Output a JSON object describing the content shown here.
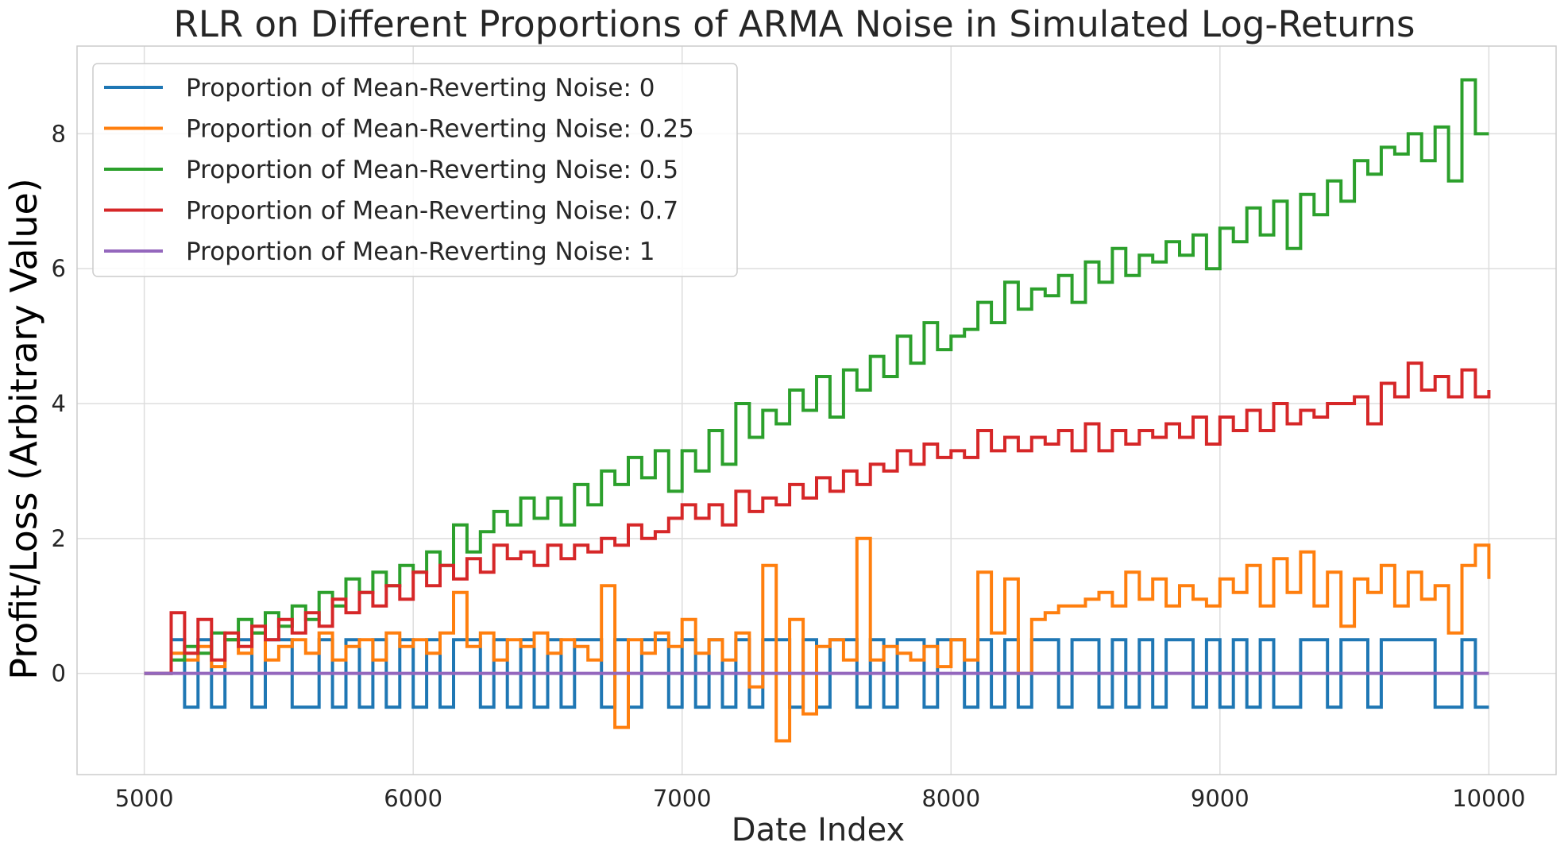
{
  "chart_data": {
    "type": "line",
    "title": "RLR on Different Proportions of ARMA Noise in Simulated Log-Returns",
    "xlabel": "Date Index",
    "ylabel": "Profit/Loss (Arbitrary Value)",
    "xlim": [
      4750,
      10250
    ],
    "ylim": [
      -1.5,
      9.3
    ],
    "xticks": [
      5000,
      6000,
      7000,
      8000,
      9000,
      10000
    ],
    "yticks": [
      0,
      2,
      4,
      6,
      8
    ],
    "grid": true,
    "legend_position": "top-left",
    "series": [
      {
        "name": "Proportion of Mean-Reverting Noise: 0",
        "color": "#1f77b4",
        "x": [
          5000,
          5050,
          5100,
          5150,
          5200,
          5250,
          5300,
          5350,
          5400,
          5450,
          5500,
          5550,
          5600,
          5650,
          5700,
          5750,
          5800,
          5850,
          5900,
          5950,
          6000,
          6050,
          6100,
          6150,
          6200,
          6250,
          6300,
          6350,
          6400,
          6450,
          6500,
          6550,
          6600,
          6650,
          6700,
          6750,
          6800,
          6850,
          6900,
          6950,
          7000,
          7050,
          7100,
          7150,
          7200,
          7250,
          7300,
          7350,
          7400,
          7450,
          7500,
          7550,
          7600,
          7650,
          7700,
          7750,
          7800,
          7850,
          7900,
          7950,
          8000,
          8050,
          8100,
          8150,
          8200,
          8250,
          8300,
          8350,
          8400,
          8450,
          8500,
          8550,
          8600,
          8650,
          8700,
          8750,
          8800,
          8850,
          8900,
          8950,
          9000,
          9050,
          9100,
          9150,
          9200,
          9250,
          9300,
          9350,
          9400,
          9450,
          9500,
          9550,
          9600,
          9650,
          9700,
          9750,
          9800,
          9850,
          9900,
          9950,
          10000
        ],
        "y": [
          0,
          0,
          0.5,
          -0.5,
          0.5,
          -0.5,
          0.5,
          0.5,
          -0.5,
          0.5,
          0.5,
          -0.5,
          -0.5,
          0.5,
          -0.5,
          0.5,
          -0.5,
          0.5,
          -0.5,
          0.5,
          -0.5,
          0.5,
          -0.5,
          0.5,
          0.5,
          -0.5,
          0.5,
          -0.5,
          0.5,
          -0.5,
          0.5,
          -0.5,
          0.5,
          0.5,
          -0.5,
          0.5,
          -0.5,
          0.5,
          0.5,
          -0.5,
          0.5,
          -0.5,
          0.5,
          -0.5,
          0.5,
          -0.5,
          0.5,
          0.5,
          -0.5,
          0.5,
          -0.5,
          0.5,
          0.5,
          -0.5,
          0.5,
          -0.5,
          0.5,
          0.5,
          -0.5,
          0.5,
          0.5,
          -0.5,
          0.5,
          -0.5,
          0.5,
          -0.5,
          0.5,
          0.5,
          -0.5,
          0.5,
          0.5,
          -0.5,
          0.5,
          -0.5,
          0.5,
          -0.5,
          0.5,
          0.5,
          -0.5,
          0.5,
          -0.5,
          0.5,
          -0.5,
          0.5,
          -0.5,
          -0.5,
          0.5,
          0.5,
          -0.5,
          0.5,
          0.5,
          -0.5,
          0.5,
          0.5,
          0.5,
          0.5,
          -0.5,
          -0.5,
          0.5,
          -0.5,
          -0.5
        ]
      },
      {
        "name": "Proportion of Mean-Reverting Noise: 0.25",
        "color": "#ff7f0e",
        "x": [
          5000,
          5050,
          5100,
          5150,
          5200,
          5250,
          5300,
          5350,
          5400,
          5450,
          5500,
          5550,
          5600,
          5650,
          5700,
          5750,
          5800,
          5850,
          5900,
          5950,
          6000,
          6050,
          6100,
          6150,
          6200,
          6250,
          6300,
          6350,
          6400,
          6450,
          6500,
          6550,
          6600,
          6650,
          6700,
          6750,
          6800,
          6850,
          6900,
          6950,
          7000,
          7050,
          7100,
          7150,
          7200,
          7250,
          7300,
          7350,
          7400,
          7450,
          7500,
          7550,
          7600,
          7650,
          7700,
          7750,
          7800,
          7850,
          7900,
          7950,
          8000,
          8050,
          8100,
          8150,
          8200,
          8250,
          8300,
          8350,
          8400,
          8450,
          8500,
          8550,
          8600,
          8650,
          8700,
          8750,
          8800,
          8850,
          8900,
          8950,
          9000,
          9050,
          9100,
          9150,
          9200,
          9250,
          9300,
          9350,
          9400,
          9450,
          9500,
          9550,
          9600,
          9650,
          9700,
          9750,
          9800,
          9850,
          9900,
          9950,
          10000
        ],
        "y": [
          0,
          0,
          0.3,
          0.2,
          0.4,
          0.1,
          0.5,
          0.3,
          0.6,
          0.2,
          0.4,
          0.5,
          0.3,
          0.6,
          0.2,
          0.4,
          0.5,
          0.2,
          0.6,
          0.4,
          0.5,
          0.3,
          0.6,
          1.2,
          0.4,
          0.6,
          0.2,
          0.5,
          0.4,
          0.6,
          0.3,
          0.5,
          0.4,
          0.2,
          1.3,
          -0.8,
          0.5,
          0.3,
          0.6,
          0.4,
          0.8,
          0.3,
          0.5,
          0.2,
          0.6,
          -0.2,
          1.6,
          -1.0,
          0.8,
          -0.6,
          0.4,
          0.5,
          0.2,
          2.0,
          0.2,
          0.4,
          0.3,
          0.2,
          0.4,
          0.1,
          0.5,
          0.2,
          1.5,
          0.6,
          1.4,
          0.0,
          0.8,
          0.9,
          1.0,
          1.0,
          1.1,
          1.2,
          1.0,
          1.5,
          1.1,
          1.4,
          1.0,
          1.3,
          1.1,
          1.0,
          1.4,
          1.2,
          1.6,
          1.0,
          1.7,
          1.2,
          1.8,
          1.0,
          1.5,
          0.7,
          1.4,
          1.2,
          1.6,
          1.0,
          1.5,
          1.1,
          1.3,
          0.6,
          1.6,
          1.9,
          1.4
        ]
      },
      {
        "name": "Proportion of Mean-Reverting Noise: 0.5",
        "color": "#2ca02c",
        "x": [
          5000,
          5050,
          5100,
          5150,
          5200,
          5250,
          5300,
          5350,
          5400,
          5450,
          5500,
          5550,
          5600,
          5650,
          5700,
          5750,
          5800,
          5850,
          5900,
          5950,
          6000,
          6050,
          6100,
          6150,
          6200,
          6250,
          6300,
          6350,
          6400,
          6450,
          6500,
          6550,
          6600,
          6650,
          6700,
          6750,
          6800,
          6850,
          6900,
          6950,
          7000,
          7050,
          7100,
          7150,
          7200,
          7250,
          7300,
          7350,
          7400,
          7450,
          7500,
          7550,
          7600,
          7650,
          7700,
          7750,
          7800,
          7850,
          7900,
          7950,
          8000,
          8050,
          8100,
          8150,
          8200,
          8250,
          8300,
          8350,
          8400,
          8450,
          8500,
          8550,
          8600,
          8650,
          8700,
          8750,
          8800,
          8850,
          8900,
          8950,
          9000,
          9050,
          9100,
          9150,
          9200,
          9250,
          9300,
          9350,
          9400,
          9450,
          9500,
          9550,
          9600,
          9650,
          9700,
          9750,
          9800,
          9850,
          9900,
          9950,
          10000
        ],
        "y": [
          0,
          0,
          0.2,
          0.4,
          0.3,
          0.6,
          0.5,
          0.8,
          0.6,
          0.9,
          0.7,
          1.0,
          0.8,
          1.2,
          1.0,
          1.4,
          1.2,
          1.5,
          1.3,
          1.6,
          1.5,
          1.8,
          1.6,
          2.2,
          1.8,
          2.1,
          2.4,
          2.2,
          2.6,
          2.3,
          2.6,
          2.2,
          2.8,
          2.5,
          3.0,
          2.8,
          3.2,
          2.9,
          3.3,
          2.7,
          3.3,
          3.0,
          3.6,
          3.1,
          4.0,
          3.5,
          3.9,
          3.7,
          4.2,
          3.9,
          4.4,
          3.8,
          4.5,
          4.2,
          4.7,
          4.4,
          5.0,
          4.6,
          5.2,
          4.8,
          5.0,
          5.1,
          5.5,
          5.2,
          5.8,
          5.4,
          5.7,
          5.6,
          5.9,
          5.5,
          6.1,
          5.8,
          6.3,
          5.9,
          6.2,
          6.1,
          6.4,
          6.2,
          6.5,
          6.0,
          6.6,
          6.4,
          6.9,
          6.5,
          7.0,
          6.3,
          7.1,
          6.8,
          7.3,
          7.0,
          7.6,
          7.4,
          7.8,
          7.7,
          8.0,
          7.6,
          8.1,
          7.3,
          8.8,
          8.0,
          8.0
        ]
      },
      {
        "name": "Proportion of Mean-Reverting Noise: 0.7",
        "color": "#d62728",
        "x": [
          5000,
          5050,
          5100,
          5150,
          5200,
          5250,
          5300,
          5350,
          5400,
          5450,
          5500,
          5550,
          5600,
          5650,
          5700,
          5750,
          5800,
          5850,
          5900,
          5950,
          6000,
          6050,
          6100,
          6150,
          6200,
          6250,
          6300,
          6350,
          6400,
          6450,
          6500,
          6550,
          6600,
          6650,
          6700,
          6750,
          6800,
          6850,
          6900,
          6950,
          7000,
          7050,
          7100,
          7150,
          7200,
          7250,
          7300,
          7350,
          7400,
          7450,
          7500,
          7550,
          7600,
          7650,
          7700,
          7750,
          7800,
          7850,
          7900,
          7950,
          8000,
          8050,
          8100,
          8150,
          8200,
          8250,
          8300,
          8350,
          8400,
          8450,
          8500,
          8550,
          8600,
          8650,
          8700,
          8750,
          8800,
          8850,
          8900,
          8950,
          9000,
          9050,
          9100,
          9150,
          9200,
          9250,
          9300,
          9350,
          9400,
          9450,
          9500,
          9550,
          9600,
          9650,
          9700,
          9750,
          9800,
          9850,
          9900,
          9950,
          10000
        ],
        "y": [
          0,
          0,
          0.9,
          0.3,
          0.8,
          0.2,
          0.6,
          0.4,
          0.7,
          0.5,
          0.8,
          0.6,
          0.9,
          0.7,
          1.1,
          0.9,
          1.2,
          1.0,
          1.3,
          1.1,
          1.5,
          1.3,
          1.6,
          1.4,
          1.7,
          1.5,
          1.9,
          1.7,
          1.8,
          1.6,
          1.9,
          1.7,
          1.9,
          1.8,
          2.0,
          1.9,
          2.2,
          2.0,
          2.1,
          2.3,
          2.5,
          2.3,
          2.5,
          2.2,
          2.7,
          2.4,
          2.6,
          2.5,
          2.8,
          2.6,
          2.9,
          2.7,
          3.0,
          2.8,
          3.1,
          3.0,
          3.3,
          3.1,
          3.4,
          3.2,
          3.3,
          3.2,
          3.6,
          3.3,
          3.5,
          3.3,
          3.5,
          3.4,
          3.6,
          3.3,
          3.7,
          3.3,
          3.6,
          3.4,
          3.6,
          3.5,
          3.7,
          3.5,
          3.8,
          3.4,
          3.8,
          3.6,
          3.9,
          3.6,
          4.0,
          3.7,
          3.9,
          3.8,
          4.0,
          4.0,
          4.1,
          3.7,
          4.3,
          4.1,
          4.6,
          4.2,
          4.4,
          4.1,
          4.5,
          4.1,
          4.2
        ]
      },
      {
        "name": "Proportion of Mean-Reverting Noise: 1",
        "color": "#9467bd",
        "x": [
          5000,
          10000
        ],
        "y": [
          0,
          0
        ]
      }
    ]
  }
}
